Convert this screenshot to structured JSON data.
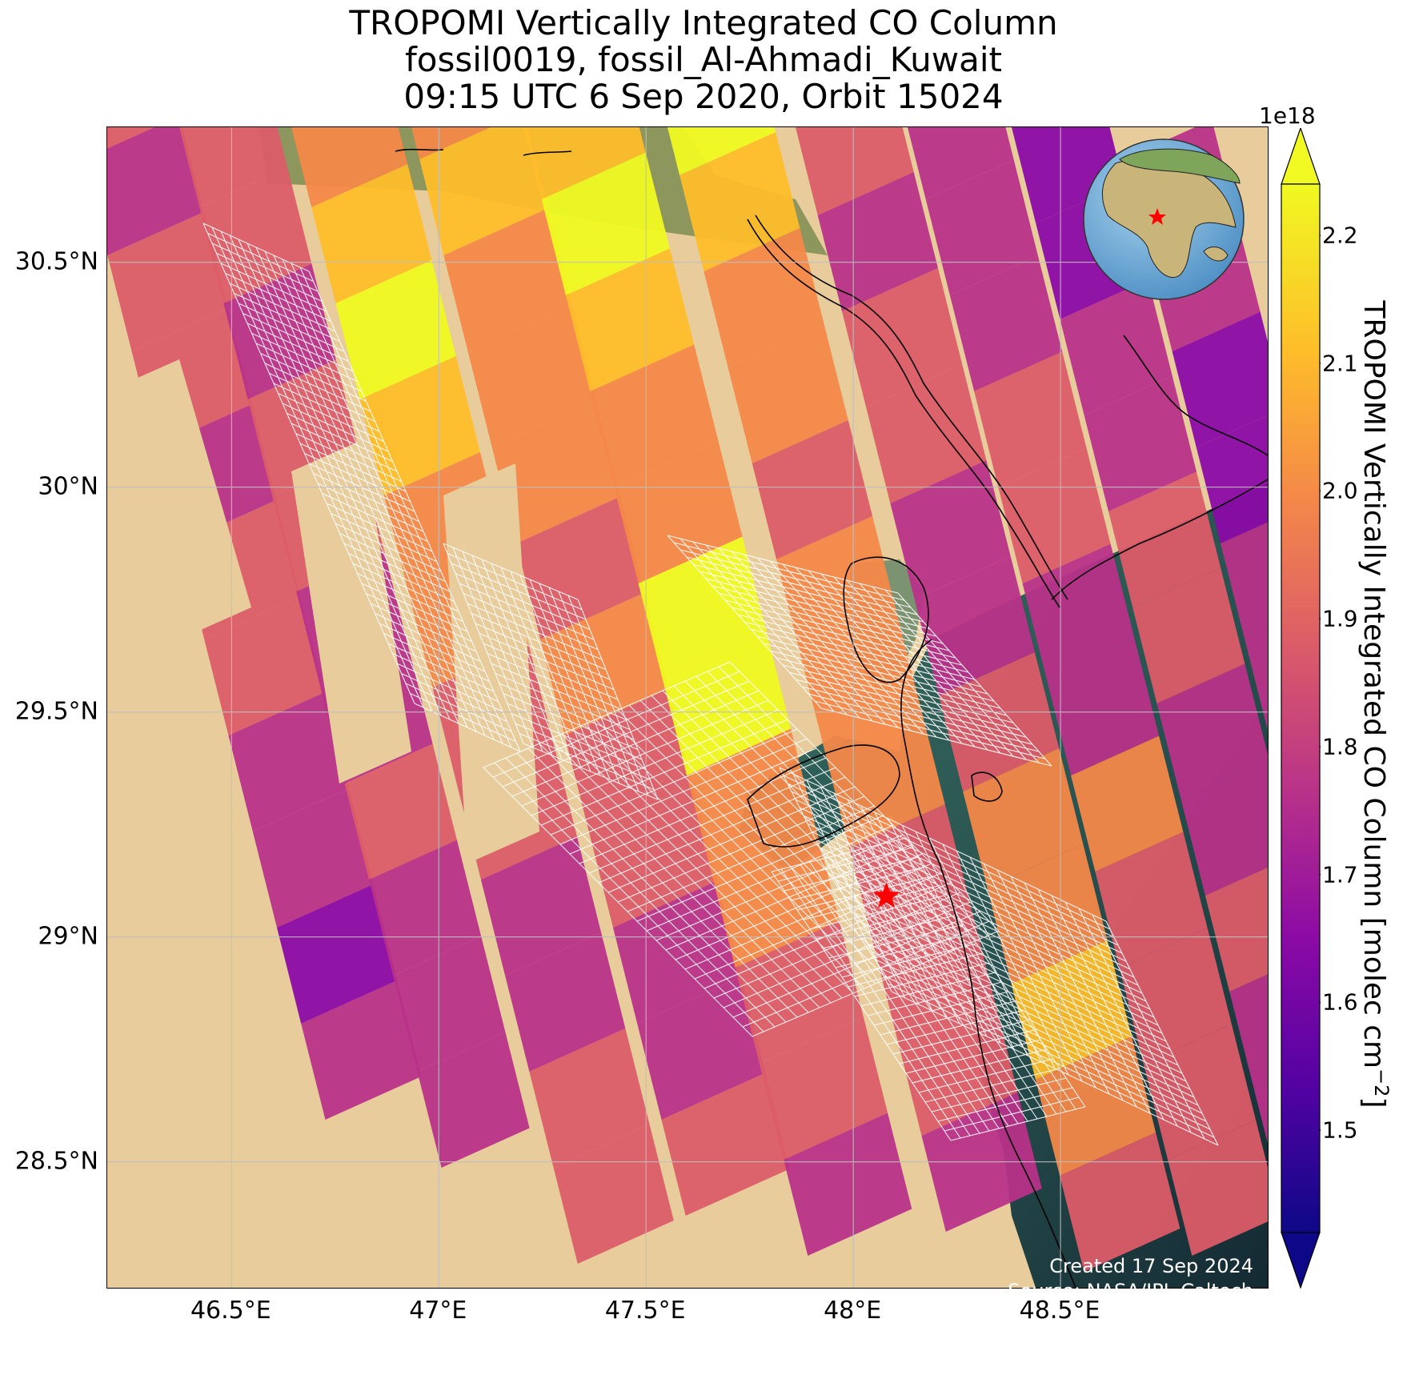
{
  "title": {
    "line1": "TROPOMI Vertically Integrated CO Column",
    "line2": "fossil0019, fossil_Al-Ahmadi_Kuwait",
    "line3": "09:15 UTC 6 Sep 2020, Orbit 15024"
  },
  "map": {
    "lat_labels": [
      "30.5°N",
      "30°N",
      "29.5°N",
      "29°N",
      "28.5°N"
    ],
    "lon_labels": [
      "46.5°E",
      "47°E",
      "47.5°E",
      "48°E",
      "48.5°E"
    ],
    "lat_values": [
      30.5,
      30.0,
      29.5,
      29.0,
      28.5
    ],
    "lon_values": [
      46.5,
      47.0,
      47.5,
      48.0,
      48.5
    ],
    "lon_range": [
      46.2,
      49.0
    ],
    "lat_range": [
      28.22,
      30.8
    ],
    "grid": true,
    "target": {
      "name": "fossil_Al-Ahmadi_Kuwait",
      "lon": 48.08,
      "lat": 29.09,
      "marker": "red-star"
    },
    "inset": "globe with red star over Kuwait"
  },
  "colorbar": {
    "label": "TROPOMI Vertically Integrated CO Column [molec cm$^{-2}$]",
    "label_text": "TROPOMI Vertically Integrated CO Column [molec cm",
    "label_sup": "−2",
    "label_end": "]",
    "exponent": "1e18",
    "ticks": [
      "2.2",
      "2.1",
      "2.0",
      "1.9",
      "1.8",
      "1.7",
      "1.6",
      "1.5"
    ],
    "tick_values": [
      2.2,
      2.1,
      2.0,
      1.9,
      1.8,
      1.7,
      1.6,
      1.5
    ],
    "range": [
      1.42,
      2.24
    ],
    "colormap": "plasma",
    "extend": "both"
  },
  "stamp": {
    "created": "Created 17 Sep 2024",
    "source": "Source: NASA/JPL-Caltech"
  },
  "colors": {
    "desert": "#e8cc9c",
    "sea": "#1e3a3a",
    "star": "#ff0000"
  }
}
